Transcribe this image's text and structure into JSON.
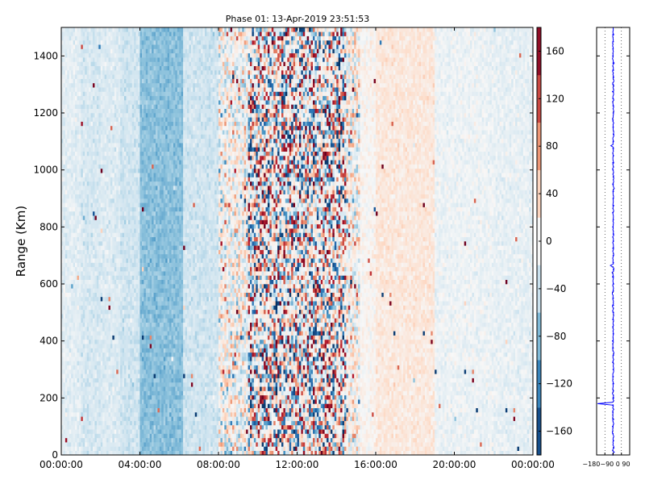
{
  "chart_data": [
    {
      "type": "heatmap",
      "title": "Phase 01: 13-Apr-2019 23:51:53",
      "xlabel": "",
      "ylabel": "Range (Km)",
      "x_ticks": [
        "00:00:00",
        "04:00:00",
        "08:00:00",
        "12:00:00",
        "16:00:00",
        "20:00:00",
        "00:00:00"
      ],
      "xlim_hours": [
        0,
        24
      ],
      "y_ticks": [
        0,
        200,
        400,
        600,
        800,
        1000,
        1200,
        1400
      ],
      "ylim": [
        0,
        1500
      ],
      "colormap": "RdBu_r",
      "colorbar": {
        "range": [
          -180,
          180
        ],
        "ticks": [
          -160,
          -120,
          -80,
          -40,
          0,
          40,
          80,
          120,
          160
        ],
        "tick_labels": [
          "−160",
          "−120",
          "−80",
          "−40",
          "0",
          "40",
          "80",
          "120",
          "160"
        ]
      },
      "column_profile_deg": [
        {
          "hours": [
            0,
            1
          ],
          "mean": -20
        },
        {
          "hours": [
            1,
            2
          ],
          "mean": -30
        },
        {
          "hours": [
            2,
            3
          ],
          "mean": -25
        },
        {
          "hours": [
            3,
            4
          ],
          "mean": -35
        },
        {
          "hours": [
            4,
            6.2
          ],
          "mean": -75
        },
        {
          "hours": [
            6.2,
            8
          ],
          "mean": -35
        },
        {
          "hours": [
            8,
            9.5
          ],
          "mean": 0
        },
        {
          "hours": [
            9.5,
            14.5
          ],
          "mean": 0
        },
        {
          "hours": [
            14.5,
            16
          ],
          "mean": 5
        },
        {
          "hours": [
            16,
            19
          ],
          "mean": 20
        },
        {
          "hours": [
            19,
            22
          ],
          "mean": -10
        },
        {
          "hours": [
            22,
            24
          ],
          "mean": -15
        }
      ],
      "grid": false
    },
    {
      "type": "line",
      "title": "",
      "xlabel": "",
      "ylabel": "",
      "x_ticks": [
        "-180",
        "-90",
        "0",
        "90"
      ],
      "x_tick_labels_rendered": "−180−90 0 90",
      "xlim": [
        -180,
        180
      ],
      "ylim": [
        0,
        1500
      ],
      "y_ticks": [
        0,
        200,
        400,
        600,
        800,
        1000,
        1200,
        1400
      ],
      "series": [
        {
          "values_x_mean": 0
        }
      ],
      "spike_at": [
        {
          "y": 180,
          "x": -170
        },
        {
          "y": 665,
          "x": -30
        },
        {
          "y": 1085,
          "x": -25
        }
      ],
      "color": "#0000ff",
      "grid_vertical_dotted": true
    }
  ]
}
